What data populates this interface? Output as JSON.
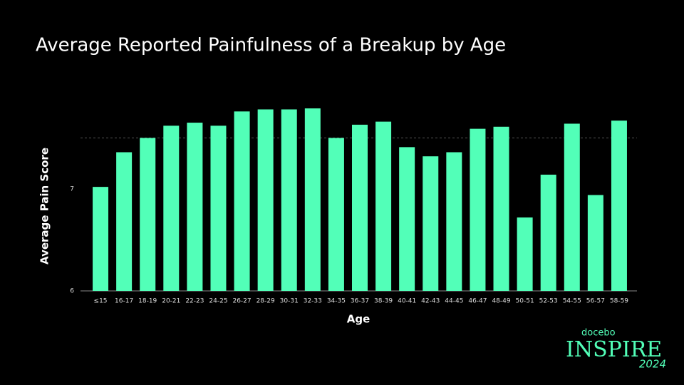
{
  "chart_data": {
    "type": "bar",
    "title": "Average Reported Painfulness of a Breakup by Age",
    "x_label": "Age",
    "y_label": "Average Pain Score",
    "categories": [
      "≤15",
      "16-17",
      "18-19",
      "20-21",
      "22-23",
      "24-25",
      "26-27",
      "28-29",
      "30-31",
      "32-33",
      "34-35",
      "36-37",
      "38-39",
      "40-41",
      "42-43",
      "44-45",
      "46-47",
      "48-49",
      "50-51",
      "52-53",
      "54-55",
      "56-57",
      "58-59"
    ],
    "values": [
      7.02,
      7.36,
      7.5,
      7.62,
      7.65,
      7.62,
      7.76,
      7.78,
      7.78,
      7.79,
      7.5,
      7.63,
      7.66,
      7.41,
      7.32,
      7.36,
      7.59,
      7.61,
      6.72,
      7.14,
      7.64,
      6.94,
      7.67
    ],
    "color": "#52ffb8",
    "ylim": [
      6,
      8
    ],
    "yticks": [
      6,
      7
    ],
    "reference_line": 7.5,
    "grid": false
  },
  "logo": {
    "brand": "docebo",
    "name": "INSPIRE",
    "year": "2024"
  }
}
